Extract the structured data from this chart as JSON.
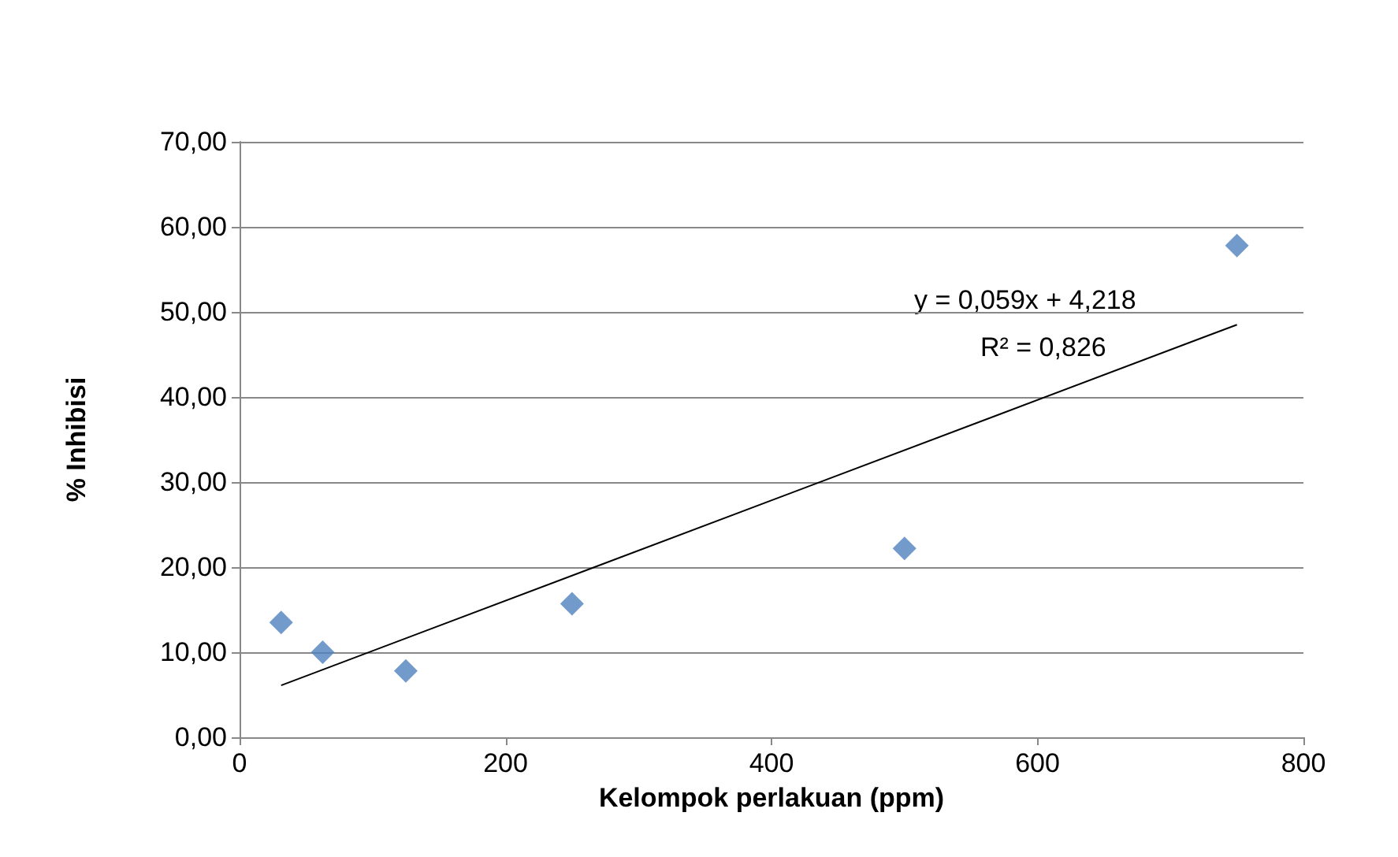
{
  "chart_data": {
    "type": "scatter",
    "xlabel": "Kelompok perlakuan (ppm)",
    "ylabel": "% Inhibisi",
    "x": [
      31.25,
      62.5,
      125,
      250,
      500,
      750
    ],
    "series": [
      {
        "color": "#4f81bd",
        "values": [
          13.5,
          10.0,
          7.8,
          15.7,
          22.2,
          57.8
        ],
        "marker": "diamond"
      },
      {
        "type": "line",
        "color": "#000000",
        "x": [
          31.25,
          750
        ],
        "values": [
          6.1,
          48.5
        ],
        "marker": "none"
      }
    ],
    "annotations": [
      "y = 0,059x + 4,218",
      "R² = 0,826"
    ],
    "xlim": [
      0,
      800
    ],
    "xticks": [
      0,
      200,
      400,
      600,
      800
    ],
    "ylim": [
      0,
      70
    ],
    "yticks": [
      {
        "value": 0,
        "label": "0,00"
      },
      {
        "value": 10,
        "label": "10,00"
      },
      {
        "value": 20,
        "label": "20,00"
      },
      {
        "value": 30,
        "label": "30,00"
      },
      {
        "value": 40,
        "label": "40,00"
      },
      {
        "value": 50,
        "label": "50,00"
      },
      {
        "value": 60,
        "label": "60,00"
      },
      {
        "value": 70,
        "label": "70,00"
      }
    ],
    "grid": "y"
  }
}
